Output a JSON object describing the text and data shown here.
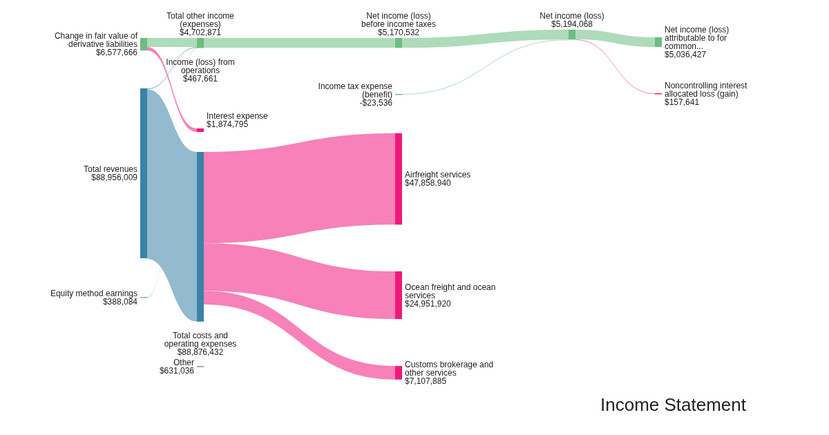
{
  "chart_data": {
    "type": "other",
    "title": "Income Statement",
    "categories": [
      "Change in fair value of derivative liabilities",
      "Total revenues",
      "Equity method earnings",
      "Other",
      "Total other income (expenses)",
      "Income (loss) from operations",
      "Interest expense",
      "Total costs and operating expenses",
      "Net income (loss) before income taxes",
      "Income tax expense (benefit)",
      "Airfreight services",
      "Ocean freight and ocean services",
      "Customs brokerage and other services",
      "Net income (loss)",
      "Net income (loss) attributable to for common...",
      "Noncontrolling interest allocated loss (gain)"
    ],
    "values": [
      6577666,
      88956009,
      388084,
      631036,
      4702871,
      467661,
      1874795,
      88876432,
      5170532,
      -23536,
      47858940,
      24951920,
      7107885,
      5194068,
      5036427,
      157641
    ],
    "value_labels": [
      "$6,577,666",
      "$88,956,009",
      "$388,084",
      "$631,036",
      "$4,702,871",
      "$467,661",
      "$1,874,795",
      "$88,876,432",
      "$5,170,532",
      "-$23,536",
      "$47,858,940",
      "$24,951,920",
      "$7,107,885",
      "$5,194,068",
      "$5,036,427",
      "$157,641"
    ],
    "colors": [
      "#6cbd80",
      "#3a82a8",
      "#6cbd80",
      "#9e9e9e",
      "#6cbd80",
      "#6cbd80",
      "#f0197d",
      "#3a82a8",
      "#6cbd80",
      "#6cbd80",
      "#f0197d",
      "#f0197d",
      "#f0197d",
      "#6cbd80",
      "#6cbd80",
      "#f0197d"
    ]
  }
}
